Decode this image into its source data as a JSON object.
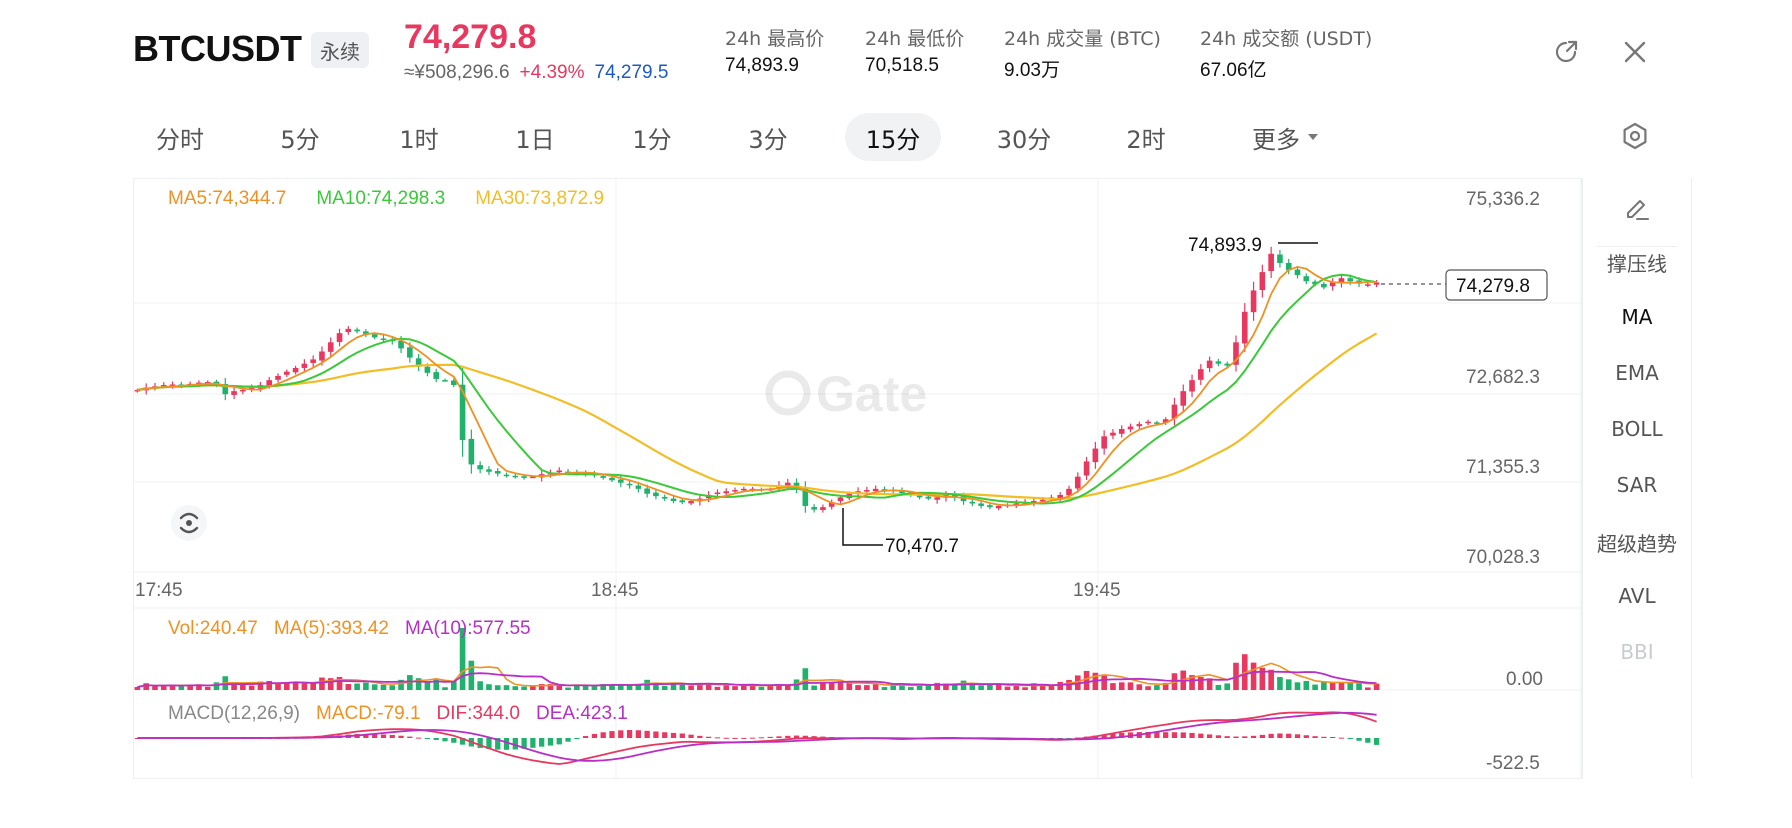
{
  "header": {
    "symbol": "BTCUSDT",
    "contract_type": "永续",
    "last_price": "74,279.8",
    "cny_price": "≈¥508,296.6",
    "change_pct": "+4.39%",
    "mark_price": "74,279.5",
    "stats": [
      {
        "label": "24h 最高价",
        "value": "74,893.9"
      },
      {
        "label": "24h 最低价",
        "value": "70,518.5"
      },
      {
        "label": "24h 成交量 (BTC)",
        "value": "9.03万"
      },
      {
        "label": "24h 成交额 (USDT)",
        "value": "67.06亿"
      }
    ],
    "icons": {
      "open": "open-external-icon",
      "close": "close-icon"
    }
  },
  "intervals": {
    "items": [
      "分时",
      "5分",
      "1时",
      "1日",
      "1分",
      "3分",
      "15分",
      "30分",
      "2时",
      "更多"
    ],
    "active": "15分",
    "settings_icon": "hexagon-settings-icon"
  },
  "right_panel": {
    "edit_icon": "pencil-icon",
    "items": [
      "撑压线",
      "MA",
      "EMA",
      "BOLL",
      "SAR",
      "超级趋势",
      "AVL",
      "BBI"
    ],
    "active": "MA"
  },
  "chart_data": {
    "type": "candlestick",
    "interval": "15分",
    "watermark": "Gate",
    "price_legend": {
      "ma5": "MA5:74,344.7",
      "ma10": "MA10:74,298.3",
      "ma30": "MA30:73,872.9"
    },
    "price_axis_ticks": [
      "75,336.2",
      "72,682.3",
      "71,355.3",
      "70,028.3"
    ],
    "time_axis_ticks": [
      "17:45",
      "18:45",
      "19:45"
    ],
    "high_marker": "74,893.9",
    "low_marker": "70,470.7",
    "last_price_tag": "74,279.8",
    "volume_legend": {
      "vol": "Vol:240.47",
      "ma5": "MA(5):393.42",
      "ma10": "MA(10):577.55"
    },
    "volume_axis_label": "0.00",
    "macd_legend": {
      "name": "MACD(12,26,9)",
      "macd": "MACD:-79.1",
      "dif": "DIF:344.0",
      "dea": "DEA:423.1"
    },
    "macd_axis_label": "-522.5",
    "price_range": [
      69800,
      75500
    ],
    "close_series": [
      72520,
      72560,
      72580,
      72600,
      72610,
      72590,
      72620,
      72640,
      72650,
      72600,
      72450,
      72500,
      72520,
      72560,
      72600,
      72680,
      72750,
      72820,
      72880,
      72950,
      73020,
      73150,
      73300,
      73450,
      73520,
      73480,
      73420,
      73380,
      73350,
      73320,
      73200,
      73050,
      72900,
      72800,
      72700,
      72680,
      72600,
      71700,
      71300,
      71220,
      71180,
      71150,
      71120,
      71100,
      71080,
      71100,
      71140,
      71160,
      71200,
      71180,
      71160,
      71140,
      71120,
      71080,
      71040,
      71000,
      70960,
      70900,
      70820,
      70780,
      70740,
      70700,
      70680,
      70700,
      70740,
      70800,
      70840,
      70860,
      70880,
      70900,
      70900,
      70880,
      70900,
      70960,
      71000,
      70900,
      70620,
      70560,
      70600,
      70680,
      70760,
      70820,
      70860,
      70880,
      70900,
      70880,
      70860,
      70830,
      70800,
      70760,
      70740,
      70760,
      70800,
      70760,
      70700,
      70660,
      70620,
      70600,
      70620,
      70640,
      70660,
      70680,
      70700,
      70720,
      70760,
      70800,
      70900,
      71100,
      71350,
      71560,
      71760,
      71820,
      71880,
      71920,
      71960,
      72000,
      71980,
      72040,
      72280,
      72500,
      72680,
      72860,
      73000,
      72950,
      72920,
      73300,
      73800,
      74150,
      74450,
      74750,
      74600,
      74480,
      74400,
      74300,
      74250,
      74200,
      74280,
      74350,
      74300,
      74260,
      74250,
      74280
    ]
  }
}
